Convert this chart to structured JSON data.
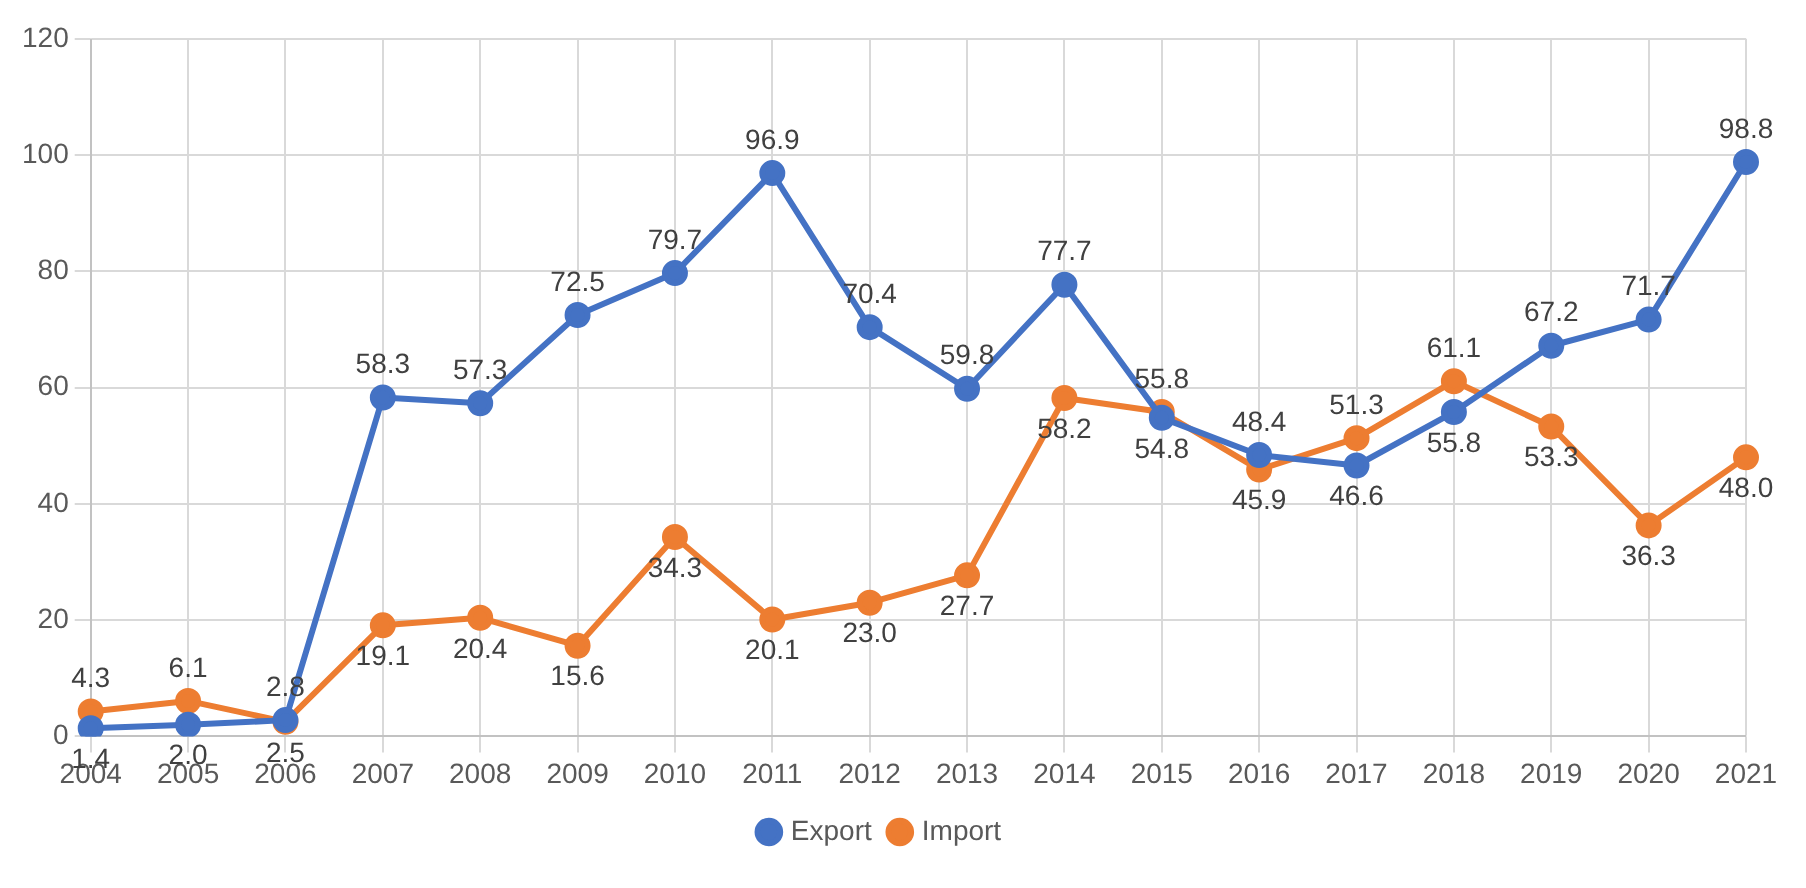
{
  "chart_data": {
    "type": "line",
    "categories": [
      "2004",
      "2005",
      "2006",
      "2007",
      "2008",
      "2009",
      "2010",
      "2011",
      "2012",
      "2013",
      "2014",
      "2015",
      "2016",
      "2017",
      "2018",
      "2019",
      "2020",
      "2021"
    ],
    "series": [
      {
        "name": "Export",
        "color": "#4472c4",
        "values": [
          1.4,
          2.0,
          2.8,
          58.3,
          57.3,
          72.5,
          79.7,
          96.9,
          70.4,
          59.8,
          77.7,
          54.8,
          48.4,
          46.6,
          55.8,
          67.2,
          71.7,
          98.8
        ],
        "value_labels": [
          "1.4",
          "2.0",
          "2.8",
          "58.3",
          "57.3",
          "72.5",
          "79.7",
          "96.9",
          "70.4",
          "59.8",
          "77.7",
          "54.8",
          "48.4",
          "46.6",
          "55.8",
          "67.2",
          "71.7",
          "98.8"
        ]
      },
      {
        "name": "Import",
        "color": "#ed7d31",
        "values": [
          4.3,
          6.1,
          2.5,
          19.1,
          20.4,
          15.6,
          34.3,
          20.1,
          23.0,
          27.7,
          58.2,
          55.8,
          45.9,
          51.3,
          61.1,
          53.3,
          36.3,
          48.0
        ],
        "value_labels": [
          "4.3",
          "6.1",
          "2.5",
          "19.1",
          "20.4",
          "15.6",
          "34.3",
          "20.1",
          "23.0",
          "27.7",
          "58.2",
          "55.8",
          "45.9",
          "51.3",
          "61.1",
          "53.3",
          "36.3",
          "48.0"
        ]
      }
    ],
    "ylim": [
      0,
      120
    ],
    "yticks": [
      0,
      20,
      40,
      60,
      80,
      100,
      120
    ],
    "grid": true,
    "legend": "bottom",
    "marker": "circle",
    "line_style": "solid"
  }
}
